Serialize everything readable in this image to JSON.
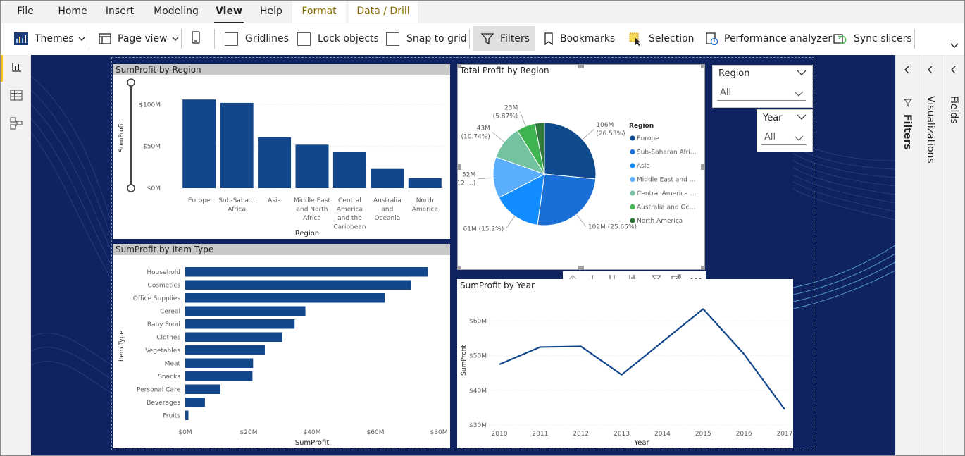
{
  "menu": {
    "file": "File",
    "home": "Home",
    "insert": "Insert",
    "modeling": "Modeling",
    "view": "View",
    "help": "Help",
    "format": "Format",
    "data_drill": "Data / Drill"
  },
  "toolbar": {
    "themes": "Themes",
    "page_view": "Page view",
    "gridlines": "Gridlines",
    "lock_objects": "Lock objects",
    "snap_to_grid": "Snap to grid",
    "filters": "Filters",
    "bookmarks": "Bookmarks",
    "selection": "Selection",
    "performance_analyzer": "Performance analyzer",
    "sync_slicers": "Sync slicers"
  },
  "panes": {
    "filters": "Filters",
    "visualizations": "Visualizations",
    "fields": "Fields"
  },
  "slicers": {
    "region": {
      "label": "Region",
      "value": "All"
    },
    "year": {
      "label": "Year",
      "value": "All"
    }
  },
  "visuals": {
    "region_bar": {
      "title": "SumProfit by Region",
      "ylabel": "SumProfit",
      "xlabel": "Region"
    },
    "pie": {
      "title": "Total Profit by Region",
      "legend_title": "Region"
    },
    "item_bar": {
      "title": "SumProfit by Item Type",
      "ylabel": "Item Type",
      "xlabel": "SumProfit"
    },
    "year_line": {
      "title": "SumProfit by Year",
      "ylabel": "SumProfit",
      "xlabel": "Year"
    }
  },
  "colors": {
    "bar": "#12478c",
    "canvas": "#0f2360",
    "accent": "#f2c811",
    "pie": [
      "#0e4a8c",
      "#1a6fd6",
      "#118dff",
      "#5aaefc",
      "#73c2a0",
      "#3fb34f",
      "#2f7a3a"
    ]
  },
  "chart_data": [
    {
      "type": "bar",
      "title": "SumProfit by Region",
      "xlabel": "Region",
      "ylabel": "SumProfit",
      "categories": [
        "Europe",
        "Sub-Saharan Africa",
        "Asia",
        "Middle East and North Africa",
        "Central America and the Caribbean",
        "Australia and Oceania",
        "North America"
      ],
      "category_labels": [
        [
          "Europe"
        ],
        [
          "Sub-Saha…",
          "Africa"
        ],
        [
          "Asia"
        ],
        [
          "Middle East",
          "and North",
          "Africa"
        ],
        [
          "Central",
          "America",
          "and the",
          "Caribbean"
        ],
        [
          "Australia",
          "and",
          "Oceania"
        ],
        [
          "North",
          "America"
        ]
      ],
      "values": [
        106,
        102,
        61,
        52,
        43,
        23,
        12
      ],
      "ylim": [
        0,
        123
      ],
      "yticks": [
        0,
        50,
        100
      ],
      "ytick_labels": [
        "$0M",
        "$50M",
        "$100M"
      ],
      "grid": true
    },
    {
      "type": "pie",
      "title": "Total Profit by Region",
      "legend_title": "Region",
      "labels": [
        "Europe",
        "Sub-Saharan Afri…",
        "Asia",
        "Middle East and …",
        "Central America …",
        "Australia and Oc…",
        "North America"
      ],
      "values": [
        26.53,
        25.65,
        15.2,
        12.99,
        10.74,
        5.87,
        3.02
      ],
      "data_labels": [
        [
          "106M",
          "(26.53%)"
        ],
        [
          "102M (25.65%)"
        ],
        [
          "61M (15.2%)"
        ],
        [
          "52M",
          "(12.…)"
        ],
        [
          "43M",
          "(10.74%)"
        ],
        [
          "23M",
          "(5.87%)"
        ],
        []
      ],
      "legend_position": "right"
    },
    {
      "type": "bar",
      "orientation": "horizontal",
      "title": "SumProfit by Item Type",
      "xlabel": "SumProfit",
      "ylabel": "Item Type",
      "categories": [
        "Household",
        "Cosmetics",
        "Office Supplies",
        "Cereal",
        "Baby Food",
        "Clothes",
        "Vegetables",
        "Meat",
        "Snacks",
        "Personal Care",
        "Beverages",
        "Fruits"
      ],
      "values": [
        76.6,
        71.3,
        62.9,
        37.9,
        34.5,
        30.6,
        25.1,
        21.4,
        21.2,
        11.1,
        6.2,
        1.0
      ],
      "xlim": [
        0,
        80
      ],
      "xticks": [
        0,
        20,
        40,
        60,
        80
      ],
      "xtick_labels": [
        "$0M",
        "$20M",
        "$40M",
        "$60M",
        "$80M"
      ]
    },
    {
      "type": "line",
      "title": "SumProfit by Year",
      "xlabel": "Year",
      "ylabel": "SumProfit",
      "x": [
        "2010",
        "2011",
        "2012",
        "2013",
        "2014",
        "2015",
        "2016",
        "2017"
      ],
      "values": [
        47.5,
        52.5,
        52.7,
        44.5,
        54.0,
        63.5,
        50.5,
        34.5
      ],
      "ylim": [
        30,
        65
      ],
      "yticks": [
        30,
        40,
        50,
        60
      ],
      "ytick_labels": [
        "$30M",
        "$40M",
        "$50M",
        "$60M"
      ],
      "grid": true
    }
  ]
}
